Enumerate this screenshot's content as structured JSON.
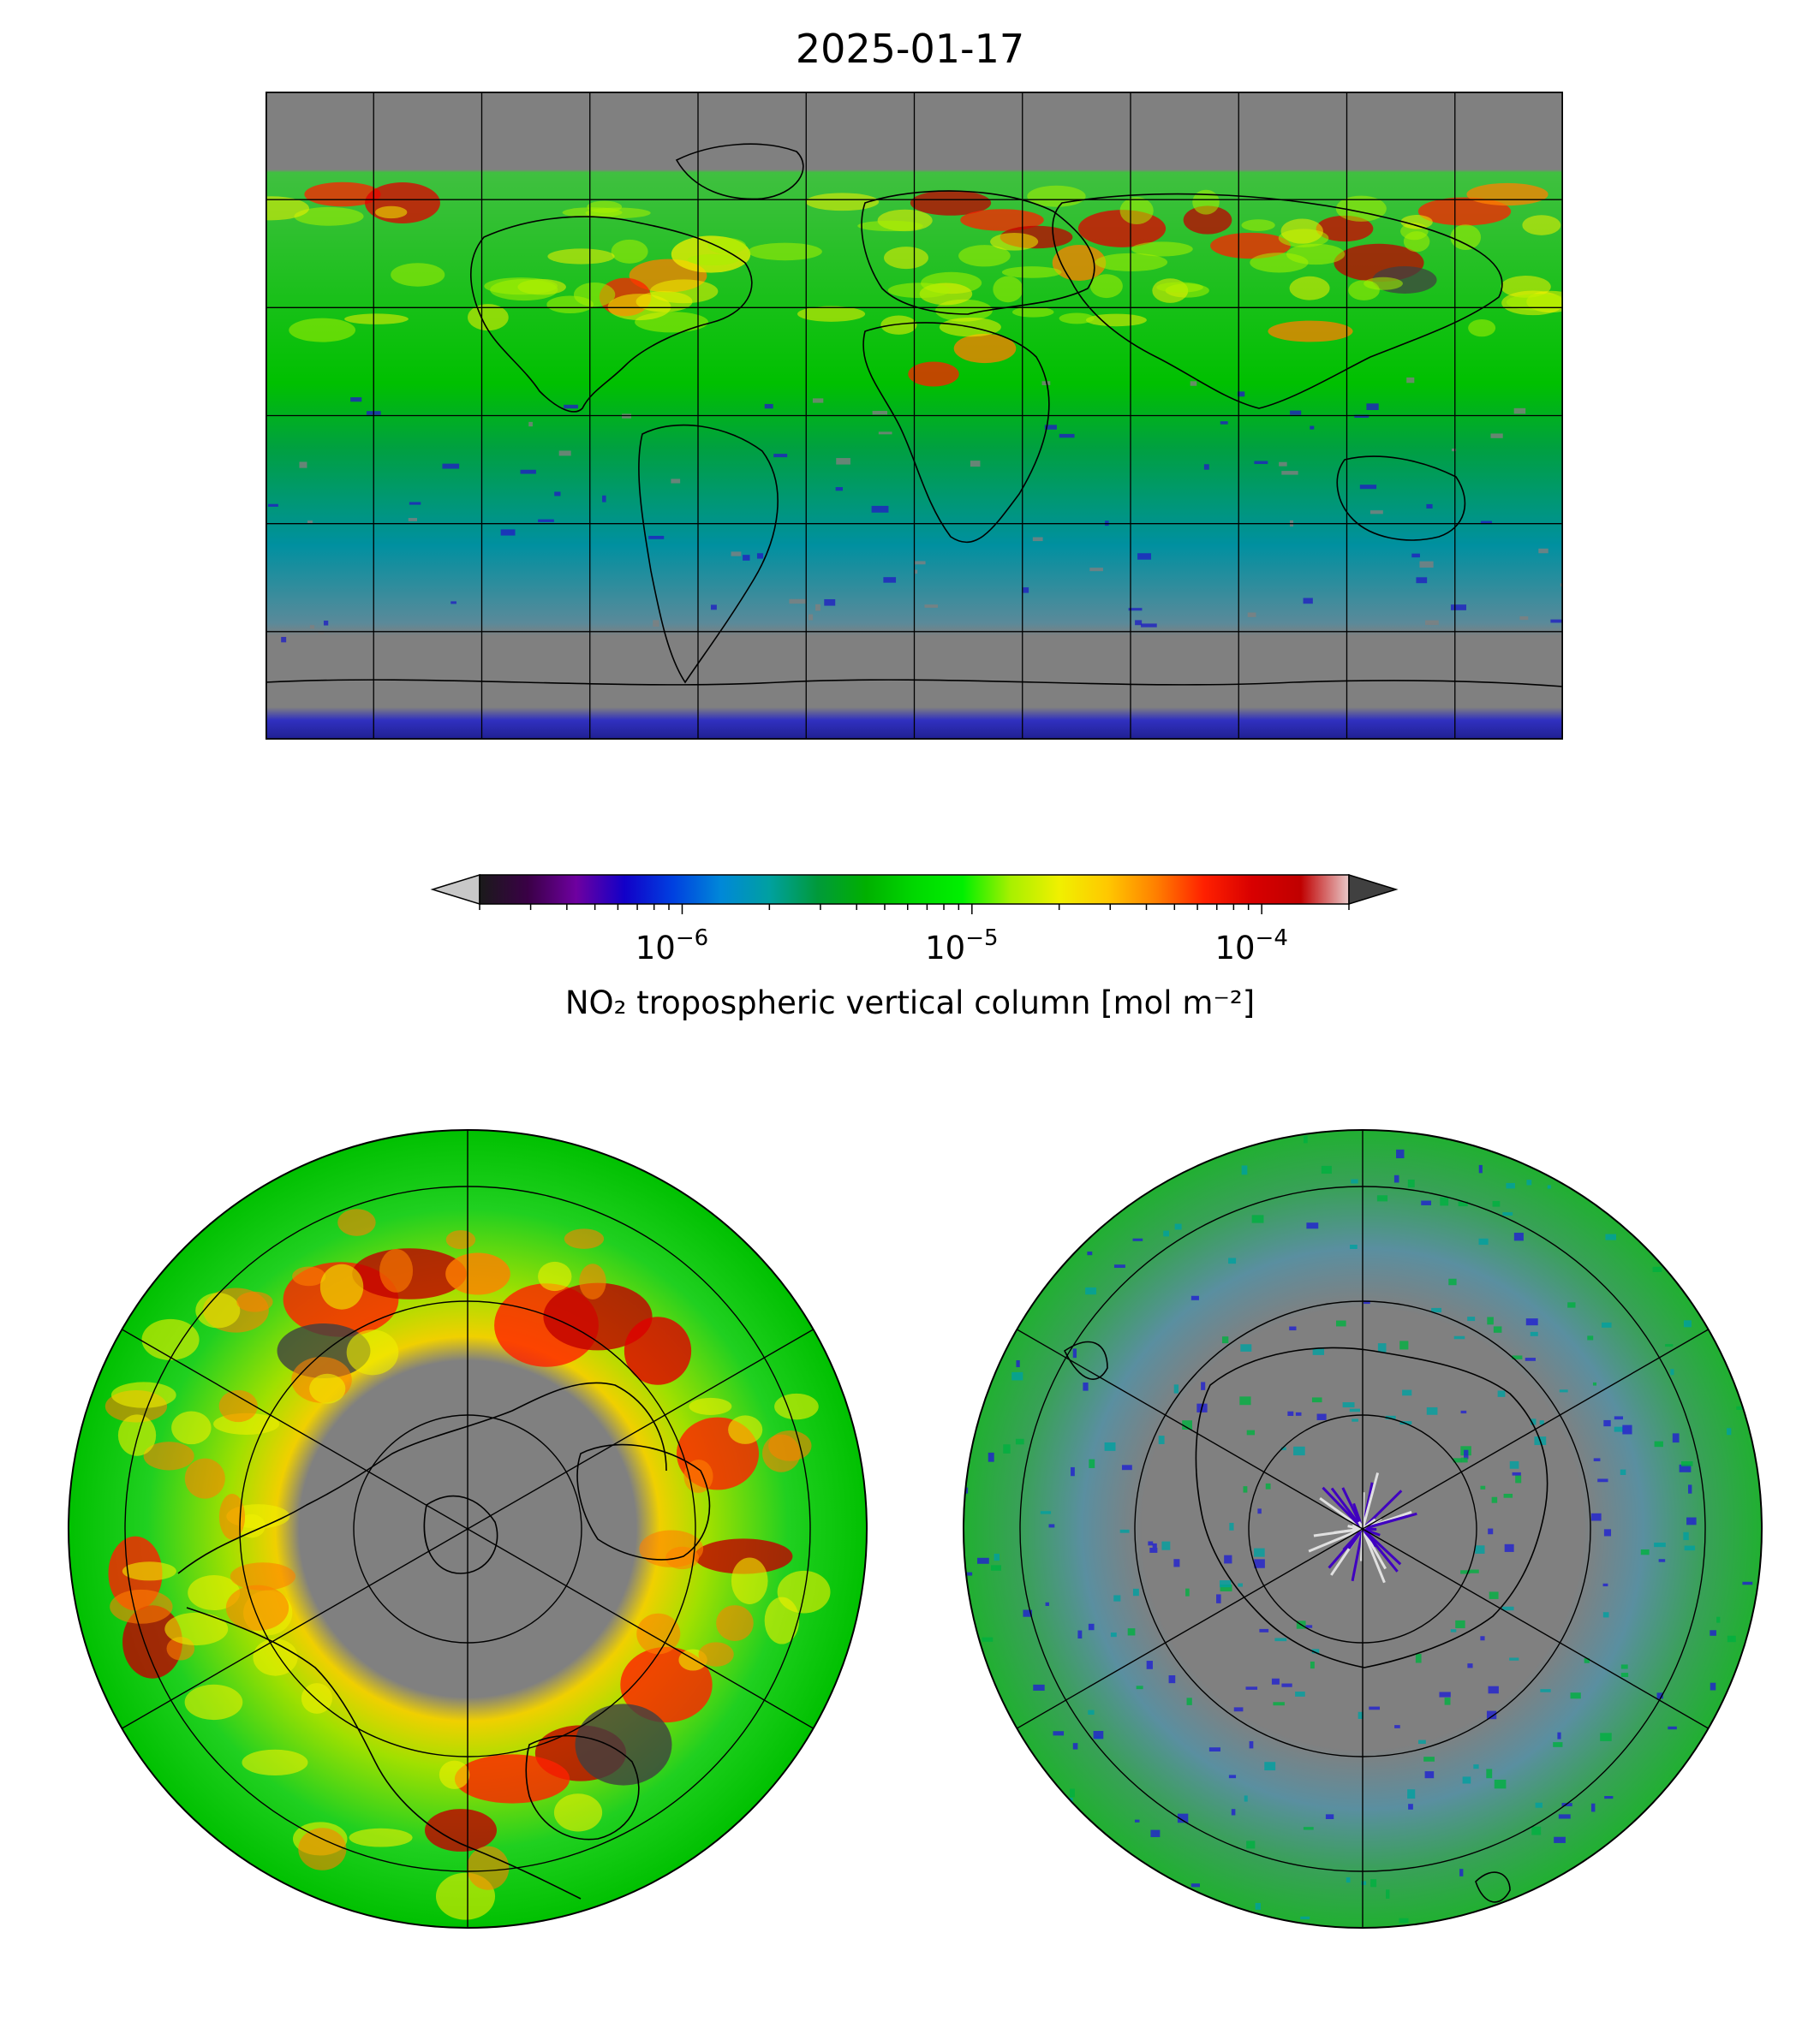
{
  "title": "2025-01-17",
  "colorbar": {
    "label": "NO₂ tropospheric vertical column [mol m⁻²]",
    "scale": "log",
    "range": [
      2e-07,
      0.0002
    ],
    "extend": "both",
    "ticks": [
      {
        "value": 1e-06,
        "base": "10",
        "exp": "−6"
      },
      {
        "value": 1e-05,
        "base": "10",
        "exp": "−5"
      },
      {
        "value": 0.0001,
        "base": "10",
        "exp": "−4"
      }
    ],
    "colors": [
      "#1a1a1a",
      "#3a0046",
      "#6e00a0",
      "#1200c8",
      "#0040e0",
      "#0088d8",
      "#00a0a0",
      "#009a3a",
      "#00b000",
      "#00d800",
      "#00f000",
      "#a8f000",
      "#f0f000",
      "#ffc800",
      "#ff8000",
      "#ff2000",
      "#d80000",
      "#c00000",
      "#e8c8c8"
    ],
    "under_color": "#c8c8c8",
    "over_color": "#404040"
  },
  "maps": [
    {
      "name": "global-map",
      "projection": "PlateCarree",
      "extent": [
        -180,
        180,
        -90,
        90
      ],
      "gridlines": true
    },
    {
      "name": "north-polar-map",
      "projection": "NorthPolarStereo",
      "gridlines": true
    },
    {
      "name": "south-polar-map",
      "projection": "SouthPolarStereo",
      "gridlines": true
    }
  ],
  "colors": {
    "no_data": "#808080",
    "coastline": "#000000",
    "gridline": "#000000"
  }
}
